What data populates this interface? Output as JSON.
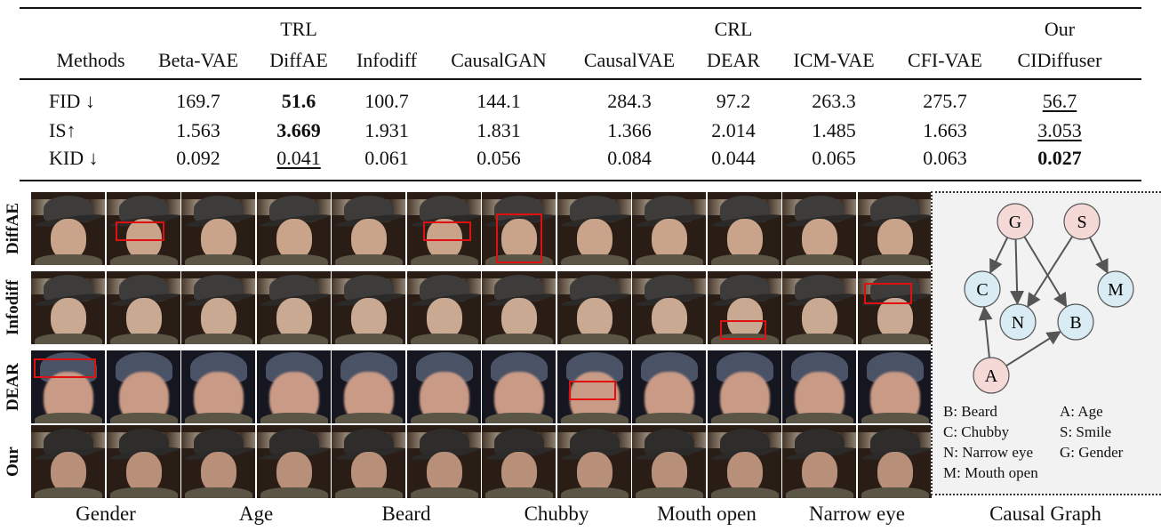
{
  "table": {
    "group_headers": [
      {
        "label": "TRL",
        "column": "DiffAE"
      },
      {
        "label": "CRL",
        "column": "DEAR"
      },
      {
        "label": "Our",
        "column": "CIDiffuser"
      }
    ],
    "columns": [
      "Methods",
      "Beta-VAE",
      "DiffAE",
      "Infodiff",
      "CausalGAN",
      "CausalVAE",
      "DEAR",
      "ICM-VAE",
      "CFI-VAE",
      "CIDiffuser"
    ],
    "rows": [
      {
        "metric": "FID ↓",
        "values": [
          "169.7",
          "51.6",
          "100.7",
          "144.1",
          "284.3",
          "97.2",
          "263.3",
          "275.7",
          "56.7"
        ],
        "bold": [
          1
        ],
        "underline": [
          8
        ]
      },
      {
        "metric": "IS↑",
        "values": [
          "1.563",
          "3.669",
          "1.931",
          "1.831",
          "1.366",
          "2.014",
          "1.485",
          "1.663",
          "3.053"
        ],
        "bold": [
          1
        ],
        "underline": [
          8
        ]
      },
      {
        "metric": "KID ↓",
        "values": [
          "0.092",
          "0.041",
          "0.061",
          "0.056",
          "0.084",
          "0.044",
          "0.065",
          "0.063",
          "0.027"
        ],
        "bold": [
          8
        ],
        "underline": [
          1
        ]
      }
    ]
  },
  "figure": {
    "row_labels": [
      "DiffAE",
      "Infodiff",
      "DEAR",
      "Our"
    ],
    "column_labels": [
      "Gender",
      "Age",
      "Beard",
      "Chubby",
      "Mouth open",
      "Narrow eye",
      "Causal Graph"
    ],
    "highlight_color": "#e01010"
  },
  "causal_graph": {
    "nodes": [
      {
        "id": "G",
        "type": "root"
      },
      {
        "id": "S",
        "type": "root"
      },
      {
        "id": "A",
        "type": "root"
      },
      {
        "id": "C",
        "type": "child"
      },
      {
        "id": "N",
        "type": "child"
      },
      {
        "id": "B",
        "type": "child"
      },
      {
        "id": "M",
        "type": "child"
      }
    ],
    "edges": [
      [
        "G",
        "C"
      ],
      [
        "G",
        "N"
      ],
      [
        "G",
        "B"
      ],
      [
        "S",
        "N"
      ],
      [
        "S",
        "M"
      ],
      [
        "A",
        "C"
      ],
      [
        "A",
        "B"
      ]
    ],
    "root_color": "#f4d9d6",
    "child_color": "#d9ecf3",
    "legend": [
      "B: Beard",
      "A: Age",
      "C: Chubby",
      "S: Smile",
      "N: Narrow eye",
      "G: Gender",
      "M: Mouth open"
    ]
  }
}
